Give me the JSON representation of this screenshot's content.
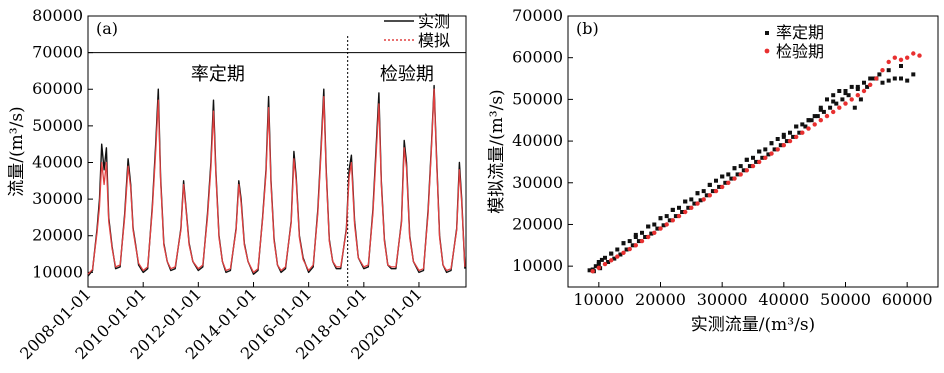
{
  "chart_data": [
    {
      "panel_label": "(a)",
      "type": "line",
      "ylabel": "流量/(m³/s)",
      "ylim": [
        6000,
        80000
      ],
      "yticks": [
        10000,
        20000,
        30000,
        40000,
        50000,
        60000,
        70000,
        80000
      ],
      "xlim": [
        "2008-01-01",
        "2021-09-15"
      ],
      "xticks": [
        "2008-01-01",
        "2010-01-01",
        "2012-01-01",
        "2014-01-01",
        "2016-01-01",
        "2018-01-01",
        "2020-01-01"
      ],
      "split_date": "2017-06-01",
      "period_line_y": 70000,
      "period_labels": [
        "率定期",
        "检验期"
      ],
      "legend": {
        "position": "top-right",
        "entries": [
          "实测",
          "模拟"
        ]
      },
      "series": [
        {
          "name": "实测",
          "color": "#111111",
          "x": [
            "2008-01-01",
            "2008-03-01",
            "2008-05-01",
            "2008-06-01",
            "2008-07-01",
            "2008-08-01",
            "2008-09-01",
            "2008-10-01",
            "2008-11-15",
            "2009-01-01",
            "2009-03-01",
            "2009-05-01",
            "2009-06-15",
            "2009-07-20",
            "2009-08-20",
            "2009-09-20",
            "2009-11-01",
            "2010-01-01",
            "2010-03-01",
            "2010-05-01",
            "2010-06-15",
            "2010-07-20",
            "2010-08-20",
            "2010-10-01",
            "2010-11-15",
            "2011-01-01",
            "2011-03-01",
            "2011-05-15",
            "2011-06-20",
            "2011-07-20",
            "2011-09-01",
            "2011-10-20",
            "2012-01-01",
            "2012-03-01",
            "2012-05-01",
            "2012-06-15",
            "2012-07-20",
            "2012-08-20",
            "2012-10-01",
            "2012-11-15",
            "2013-01-01",
            "2013-03-01",
            "2013-05-15",
            "2013-06-20",
            "2013-07-20",
            "2013-09-01",
            "2013-10-20",
            "2014-01-01",
            "2014-03-01",
            "2014-05-01",
            "2014-06-15",
            "2014-07-20",
            "2014-08-20",
            "2014-10-01",
            "2014-11-15",
            "2015-01-01",
            "2015-03-01",
            "2015-05-15",
            "2015-06-20",
            "2015-07-20",
            "2015-09-01",
            "2015-10-20",
            "2016-01-01",
            "2016-03-01",
            "2016-05-01",
            "2016-06-15",
            "2016-07-20",
            "2016-08-20",
            "2016-10-01",
            "2016-11-15",
            "2017-01-01",
            "2017-03-01",
            "2017-05-15",
            "2017-06-20",
            "2017-07-20",
            "2017-09-01",
            "2017-10-20",
            "2018-01-01",
            "2018-03-01",
            "2018-05-01",
            "2018-06-15",
            "2018-07-20",
            "2018-08-20",
            "2018-10-01",
            "2018-11-15",
            "2019-01-01",
            "2019-03-01",
            "2019-05-15",
            "2019-06-20",
            "2019-07-20",
            "2019-09-01",
            "2019-10-20",
            "2020-01-01",
            "2020-03-01",
            "2020-05-01",
            "2020-06-15",
            "2020-07-20",
            "2020-08-20",
            "2020-10-01",
            "2020-11-15",
            "2021-01-01",
            "2021-03-01",
            "2021-05-15",
            "2021-06-20",
            "2021-07-20",
            "2021-09-01"
          ],
          "values": [
            9000,
            10500,
            22000,
            30000,
            45000,
            38000,
            44000,
            25000,
            17000,
            11000,
            11500,
            26000,
            41000,
            34000,
            22000,
            18000,
            12000,
            10000,
            11000,
            28000,
            45000,
            60000,
            36000,
            18000,
            13000,
            10500,
            11000,
            22000,
            35000,
            28000,
            18000,
            13000,
            10500,
            11500,
            26000,
            40000,
            57000,
            38000,
            20000,
            13000,
            10000,
            10500,
            22000,
            35000,
            30000,
            18000,
            13000,
            9500,
            10500,
            25000,
            38000,
            58000,
            35000,
            19000,
            12000,
            10000,
            11000,
            24000,
            43000,
            36000,
            20000,
            14000,
            10000,
            11500,
            27000,
            45000,
            60000,
            38000,
            19000,
            13000,
            11000,
            11000,
            22000,
            38000,
            42000,
            24000,
            14000,
            11000,
            11500,
            27000,
            45000,
            59000,
            35000,
            19000,
            12000,
            11000,
            11000,
            24000,
            46000,
            40000,
            20000,
            13000,
            10000,
            10500,
            27000,
            45000,
            61000,
            42000,
            20000,
            12000,
            10000,
            10500,
            22000,
            40000,
            30000,
            11000
          ]
        },
        {
          "name": "模拟",
          "color": "#e04040",
          "x": [
            "2008-01-01",
            "2008-03-01",
            "2008-05-01",
            "2008-06-01",
            "2008-07-01",
            "2008-08-01",
            "2008-09-01",
            "2008-10-01",
            "2008-11-15",
            "2009-01-01",
            "2009-03-01",
            "2009-05-01",
            "2009-06-15",
            "2009-07-20",
            "2009-08-20",
            "2009-09-20",
            "2009-11-01",
            "2010-01-01",
            "2010-03-01",
            "2010-05-01",
            "2010-06-15",
            "2010-07-20",
            "2010-08-20",
            "2010-10-01",
            "2010-11-15",
            "2011-01-01",
            "2011-03-01",
            "2011-05-15",
            "2011-06-20",
            "2011-07-20",
            "2011-09-01",
            "2011-10-20",
            "2012-01-01",
            "2012-03-01",
            "2012-05-01",
            "2012-06-15",
            "2012-07-20",
            "2012-08-20",
            "2012-10-01",
            "2012-11-15",
            "2013-01-01",
            "2013-03-01",
            "2013-05-15",
            "2013-06-20",
            "2013-07-20",
            "2013-09-01",
            "2013-10-20",
            "2014-01-01",
            "2014-03-01",
            "2014-05-01",
            "2014-06-15",
            "2014-07-20",
            "2014-08-20",
            "2014-10-01",
            "2014-11-15",
            "2015-01-01",
            "2015-03-01",
            "2015-05-15",
            "2015-06-20",
            "2015-07-20",
            "2015-09-01",
            "2015-10-20",
            "2016-01-01",
            "2016-03-01",
            "2016-05-01",
            "2016-06-15",
            "2016-07-20",
            "2016-08-20",
            "2016-10-01",
            "2016-11-15",
            "2017-01-01",
            "2017-03-01",
            "2017-05-15",
            "2017-06-20",
            "2017-07-20",
            "2017-09-01",
            "2017-10-20",
            "2018-01-01",
            "2018-03-01",
            "2018-05-01",
            "2018-06-15",
            "2018-07-20",
            "2018-08-20",
            "2018-10-01",
            "2018-11-15",
            "2019-01-01",
            "2019-03-01",
            "2019-05-15",
            "2019-06-20",
            "2019-07-20",
            "2019-09-01",
            "2019-10-20",
            "2020-01-01",
            "2020-03-01",
            "2020-05-01",
            "2020-06-15",
            "2020-07-20",
            "2020-08-20",
            "2020-10-01",
            "2020-11-15",
            "2021-01-01",
            "2021-03-01",
            "2021-05-15",
            "2021-06-20",
            "2021-07-20",
            "2021-09-01"
          ],
          "values": [
            9500,
            10800,
            21000,
            28000,
            40000,
            34000,
            40000,
            24000,
            16500,
            11500,
            12000,
            25000,
            39000,
            33000,
            21500,
            17500,
            12500,
            10500,
            11500,
            27000,
            43000,
            57000,
            35000,
            17500,
            13000,
            11000,
            11500,
            21500,
            34000,
            27500,
            17500,
            13000,
            11000,
            12000,
            25000,
            38500,
            54000,
            37000,
            19500,
            13000,
            10500,
            11000,
            21500,
            34000,
            29000,
            17500,
            13000,
            10000,
            11000,
            24500,
            37000,
            55000,
            34000,
            18500,
            12000,
            10500,
            11500,
            23500,
            41000,
            35000,
            19500,
            13500,
            10500,
            12000,
            26000,
            43500,
            58000,
            37000,
            18500,
            13000,
            11500,
            11500,
            21500,
            36000,
            40000,
            23000,
            14000,
            11500,
            12000,
            26000,
            43000,
            56000,
            34000,
            18500,
            12000,
            11500,
            11500,
            23500,
            44000,
            38500,
            19500,
            13000,
            10500,
            11000,
            26000,
            44000,
            60000,
            41000,
            19500,
            12000,
            10500,
            11000,
            21500,
            38000,
            29000,
            11500
          ]
        }
      ]
    },
    {
      "panel_label": "(b)",
      "type": "scatter",
      "xlabel": "实测流量/(m³/s)",
      "ylabel": "模拟流量/(m³/s)",
      "xlim": [
        5000,
        65000
      ],
      "ylim": [
        5000,
        70000
      ],
      "xticks": [
        10000,
        20000,
        30000,
        40000,
        50000,
        60000
      ],
      "yticks": [
        10000,
        20000,
        30000,
        40000,
        50000,
        60000,
        70000
      ],
      "legend": {
        "position": "top",
        "entries": [
          "率定期",
          "检验期"
        ]
      },
      "series": [
        {
          "name": "率定期",
          "color": "#111111",
          "x": [
            8500,
            9000,
            9500,
            10000,
            10500,
            11000,
            12000,
            13000,
            14000,
            15000,
            16000,
            17000,
            18000,
            19000,
            20000,
            21000,
            22000,
            23000,
            24000,
            25000,
            26000,
            27000,
            28000,
            29000,
            30000,
            31000,
            32000,
            33000,
            34000,
            35000,
            36000,
            37000,
            38000,
            39000,
            40000,
            41000,
            42000,
            43000,
            44000,
            45000,
            46000,
            47000,
            48000,
            49000,
            50000,
            51000,
            52000,
            53000,
            54000,
            55000,
            56000,
            57000,
            58000,
            59000,
            60000,
            9200,
            10200,
            11500,
            12500,
            13500,
            14500,
            15500,
            16500,
            17500,
            18500,
            19500,
            20500,
            21500,
            22500,
            23500,
            24500,
            25500,
            26500,
            27500,
            28500,
            29500,
            30500,
            31500,
            32500,
            33500,
            34500,
            35500,
            36500,
            37500,
            38500,
            39500,
            40500,
            41500,
            42500,
            43500,
            44500,
            45500,
            46500,
            47500,
            48500,
            49500,
            50500,
            51500,
            52500,
            53500,
            54500,
            55500,
            57000,
            59000,
            61000,
            10000,
            12000,
            14000,
            16000,
            18000,
            20000,
            22000,
            24000,
            26000,
            28000,
            30000,
            32000,
            34000,
            36000,
            38000,
            40000,
            42000,
            44000,
            46000,
            48000,
            50000,
            52000
          ],
          "values": [
            9000,
            9200,
            10000,
            10500,
            11500,
            12000,
            13000,
            14000,
            15500,
            16000,
            17500,
            18000,
            19500,
            20000,
            21500,
            22000,
            23500,
            24000,
            25500,
            26000,
            27500,
            28000,
            29500,
            30500,
            31500,
            32000,
            33500,
            34000,
            35500,
            36000,
            37500,
            38000,
            39500,
            40500,
            41000,
            42000,
            43500,
            44000,
            45000,
            46000,
            48000,
            50000,
            51000,
            52000,
            52000,
            53000,
            52500,
            54000,
            55000,
            55000,
            54000,
            54500,
            55000,
            55000,
            54500,
            8800,
            9500,
            11000,
            11800,
            12800,
            14000,
            15000,
            16000,
            17000,
            17800,
            19000,
            19800,
            21000,
            22000,
            23000,
            24000,
            25000,
            25800,
            27000,
            28000,
            29000,
            30000,
            31000,
            32000,
            33000,
            34000,
            35000,
            36000,
            36800,
            38000,
            39000,
            40000,
            41000,
            42000,
            43500,
            45000,
            46000,
            47000,
            48000,
            49000,
            50000,
            51000,
            48000,
            50000,
            53000,
            55000,
            56000,
            57000,
            58000,
            56000,
            11000,
            13000,
            15500,
            17000,
            19500,
            21500,
            23500,
            25500,
            27500,
            29500,
            31500,
            33500,
            35500,
            37500,
            39500,
            41500,
            43500,
            45000,
            47500,
            49500,
            51500,
            53000
          ]
        },
        {
          "name": "检验期",
          "color": "#e83030",
          "x": [
            9000,
            10000,
            11000,
            12000,
            13000,
            14000,
            15000,
            16000,
            17000,
            18000,
            19000,
            20000,
            21000,
            22000,
            23000,
            24000,
            25000,
            26000,
            27000,
            28000,
            29000,
            30000,
            31000,
            32000,
            33000,
            34000,
            35000,
            36000,
            37000,
            38000,
            39000,
            40000,
            41000,
            42000,
            43000,
            44000,
            45000,
            46000,
            47000,
            48000,
            49000,
            50000,
            51000,
            52000,
            53000,
            54000,
            55000,
            56000,
            57000,
            58000,
            59000,
            60000,
            61000,
            62000
          ],
          "values": [
            8800,
            9600,
            10500,
            11400,
            12300,
            13200,
            14100,
            15000,
            16000,
            17000,
            18000,
            19000,
            20000,
            21000,
            22000,
            23000,
            24000,
            25000,
            26000,
            27000,
            28000,
            29000,
            30000,
            31000,
            32000,
            33000,
            34000,
            35000,
            36000,
            37000,
            38000,
            39000,
            40000,
            41000,
            42000,
            43000,
            44000,
            45000,
            46000,
            47000,
            48000,
            49000,
            50000,
            51000,
            52000,
            53500,
            55000,
            57000,
            59000,
            60000,
            59500,
            60000,
            61000,
            60500
          ]
        }
      ]
    }
  ]
}
